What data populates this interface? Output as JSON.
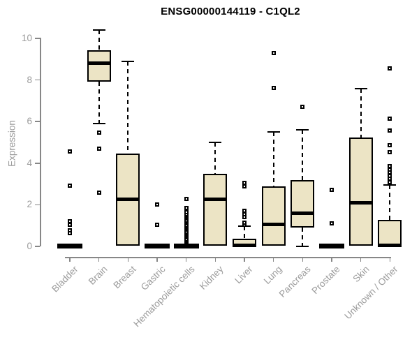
{
  "title": "ENSG00000144119 - C1QL2",
  "chart_data": {
    "type": "box",
    "title": "ENSG00000144119 - C1QL2",
    "xlabel": "",
    "ylabel": "Expression",
    "ylim": [
      -0.2,
      10.5
    ],
    "yticks": [
      0,
      2,
      4,
      6,
      8,
      10
    ],
    "grid": false,
    "legend": null,
    "categories": [
      "Bladder",
      "Brain",
      "Breast",
      "Gastric",
      "Hematopoietic cells",
      "Kidney",
      "Liver",
      "Lung",
      "Pancreas",
      "Prostate",
      "Skin",
      "Unknown / Other"
    ],
    "boxes": [
      {
        "category": "Bladder",
        "collapsed": true,
        "q1": 0,
        "median": 0.02,
        "q3": 0.08,
        "whisker_low": 0,
        "whisker_high": 0.08,
        "outliers": [
          0.64,
          0.77,
          1.04,
          1.21,
          2.92,
          4.55
        ]
      },
      {
        "category": "Brain",
        "collapsed": false,
        "q1": 7.93,
        "median": 8.8,
        "q3": 9.44,
        "whisker_low": 5.92,
        "whisker_high": 10.39,
        "outliers": [
          2.58,
          4.69,
          5.47
        ]
      },
      {
        "category": "Breast",
        "collapsed": false,
        "q1": 0.02,
        "median": 2.26,
        "q3": 4.46,
        "whisker_low": 0.02,
        "whisker_high": 8.89,
        "outliers": []
      },
      {
        "category": "Gastric",
        "collapsed": true,
        "q1": 0,
        "median": 0.02,
        "q3": 0.06,
        "whisker_low": 0,
        "whisker_high": 0.06,
        "outliers": [
          1.05,
          2.02
        ]
      },
      {
        "category": "Hematopoietic cells",
        "collapsed": true,
        "q1": 0,
        "median": 0.02,
        "q3": 0.06,
        "whisker_low": 0,
        "whisker_high": 0.06,
        "outliers": [
          0.2,
          0.28,
          0.35,
          0.42,
          0.5,
          0.58,
          0.65,
          0.72,
          0.8,
          0.88,
          0.95,
          1.02,
          1.1,
          1.18,
          1.25,
          1.33,
          1.4,
          1.48,
          1.55,
          1.65,
          1.85,
          2.28
        ]
      },
      {
        "category": "Kidney",
        "collapsed": false,
        "q1": 0.02,
        "median": 2.26,
        "q3": 3.5,
        "whisker_low": 0.02,
        "whisker_high": 5.0,
        "outliers": []
      },
      {
        "category": "Liver",
        "collapsed": false,
        "q1": 0,
        "median": 0.05,
        "q3": 0.37,
        "whisker_low": 0,
        "whisker_high": 0.97,
        "outliers": [
          1.05,
          1.15,
          1.4,
          1.55,
          1.7,
          2.87,
          3.05
        ]
      },
      {
        "category": "Lung",
        "collapsed": false,
        "q1": 0.02,
        "median": 1.05,
        "q3": 2.87,
        "whisker_low": 0.02,
        "whisker_high": 5.5,
        "outliers": [
          7.62,
          9.3
        ]
      },
      {
        "category": "Pancreas",
        "collapsed": false,
        "q1": 0.91,
        "median": 1.6,
        "q3": 3.19,
        "whisker_low": 0,
        "whisker_high": 5.6,
        "outliers": [
          6.71
        ]
      },
      {
        "category": "Prostate",
        "collapsed": true,
        "q1": 0,
        "median": 0.02,
        "q3": 0.06,
        "whisker_low": 0,
        "whisker_high": 0.06,
        "outliers": [
          1.11,
          2.73
        ]
      },
      {
        "category": "Skin",
        "collapsed": false,
        "q1": 0.02,
        "median": 2.11,
        "q3": 5.25,
        "whisker_low": 0.02,
        "whisker_high": 7.59,
        "outliers": []
      },
      {
        "category": "Unknown / Other",
        "collapsed": false,
        "q1": 0,
        "median": 0.05,
        "q3": 1.27,
        "whisker_low": 0,
        "whisker_high": 2.95,
        "outliers": [
          3.1,
          3.25,
          3.4,
          3.55,
          3.7,
          3.85,
          4.52,
          4.86,
          5.58,
          6.14,
          8.57
        ]
      }
    ],
    "colors": {
      "box_fill": "#ece4c5",
      "box_border": "#000000",
      "median": "#000000",
      "whisker": "#000000",
      "axis": "#878787",
      "tick_label": "#9b9b9b",
      "title": "#000000",
      "background": "#ffffff"
    }
  }
}
